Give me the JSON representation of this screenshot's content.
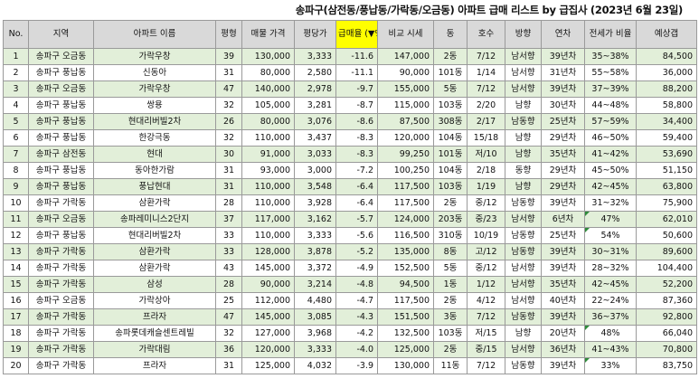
{
  "title": "송파구(삼전동/풍납동/가락동/오금동) 아파트 급매 리스트 by 급집사 (2023년 6월 23일)",
  "headers": [
    "No.",
    "지역",
    "아파트 이름",
    "평형",
    "매물 가격",
    "평당가",
    "급매율 (▼%)",
    "비교 시세",
    "동",
    "호수",
    "방향",
    "연차",
    "전세가 비율",
    "예상갭"
  ],
  "rows": [
    [
      "1",
      "송파구 오금동",
      "가락우창",
      "39",
      "130,000",
      "3,333",
      "-11.6",
      "147,000",
      "2동",
      "7/12",
      "남서향",
      "39년차",
      "35~38%",
      "84,500"
    ],
    [
      "2",
      "송파구 풍납동",
      "신동아",
      "31",
      "80,000",
      "2,580",
      "-11.1",
      "90,000",
      "101동",
      "1/14",
      "남서향",
      "31년차",
      "55~58%",
      "36,000"
    ],
    [
      "3",
      "송파구 오금동",
      "가락우창",
      "47",
      "140,000",
      "2,978",
      "-9.7",
      "155,000",
      "5동",
      "7/12",
      "남서향",
      "39년차",
      "37~39%",
      "88,200"
    ],
    [
      "4",
      "송파구 풍납동",
      "쌍용",
      "32",
      "105,000",
      "3,281",
      "-8.7",
      "115,000",
      "103동",
      "2/20",
      "남향",
      "30년차",
      "44~48%",
      "58,800"
    ],
    [
      "5",
      "송파구 풍납동",
      "현대리버빌2차",
      "26",
      "80,000",
      "3,076",
      "-8.6",
      "87,500",
      "308동",
      "2/17",
      "남동향",
      "25년차",
      "57~59%",
      "34,400"
    ],
    [
      "6",
      "송파구 풍납동",
      "한강극동",
      "32",
      "110,000",
      "3,437",
      "-8.3",
      "120,000",
      "104동",
      "15/18",
      "남향",
      "29년차",
      "46~50%",
      "59,400"
    ],
    [
      "7",
      "송파구 삼전동",
      "현대",
      "30",
      "91,000",
      "3,033",
      "-8.3",
      "99,250",
      "101동",
      "저/10",
      "남향",
      "35년차",
      "41~42%",
      "53,690"
    ],
    [
      "8",
      "송파구 풍납동",
      "동아한가람",
      "31",
      "93,000",
      "3,000",
      "-7.2",
      "100,250",
      "104동",
      "2/18",
      "동향",
      "29년차",
      "45~50%",
      "51,150"
    ],
    [
      "9",
      "송파구 풍납동",
      "풍납현대",
      "31",
      "110,000",
      "3,548",
      "-6.4",
      "117,500",
      "103동",
      "1/19",
      "남향",
      "29년차",
      "42~45%",
      "63,800"
    ],
    [
      "10",
      "송파구 가락동",
      "삼환가락",
      "28",
      "110,000",
      "3,928",
      "-6.4",
      "117,500",
      "2동",
      "중/12",
      "남동향",
      "39년차",
      "31~32%",
      "75,900"
    ],
    [
      "11",
      "송파구 오금동",
      "송파레미니스2단지",
      "37",
      "117,000",
      "3,162",
      "-5.7",
      "124,000",
      "203동",
      "중/23",
      "남서향",
      "6년차",
      "47%",
      "62,010"
    ],
    [
      "12",
      "송파구 풍납동",
      "현대리버빌2차",
      "33",
      "110,000",
      "3,333",
      "-5.6",
      "116,500",
      "310동",
      "10/19",
      "남동향",
      "25년차",
      "54%",
      "50,600"
    ],
    [
      "13",
      "송파구 가락동",
      "삼환가락",
      "33",
      "128,000",
      "3,878",
      "-5.2",
      "135,000",
      "8동",
      "고/12",
      "남동향",
      "39년차",
      "30~31%",
      "89,600"
    ],
    [
      "14",
      "송파구 가락동",
      "삼환가락",
      "43",
      "145,000",
      "3,372",
      "-4.9",
      "152,500",
      "5동",
      "중/12",
      "남서향",
      "39년차",
      "28~32%",
      "104,400"
    ],
    [
      "15",
      "송파구 가락동",
      "삼성",
      "28",
      "90,000",
      "3,214",
      "-4.8",
      "94,500",
      "1동",
      "1/12",
      "남서향",
      "35년차",
      "42~45%",
      "52,200"
    ],
    [
      "16",
      "송파구 오금동",
      "가락상아",
      "25",
      "112,000",
      "4,480",
      "-4.7",
      "117,500",
      "2동",
      "4/12",
      "남서향",
      "40년차",
      "22~24%",
      "87,360"
    ],
    [
      "17",
      "송파구 가락동",
      "프라자",
      "47",
      "145,000",
      "3,085",
      "-4.3",
      "151,500",
      "3동",
      "7/12",
      "남동향",
      "39년차",
      "36~37%",
      "92,800"
    ],
    [
      "18",
      "송파구 가락동",
      "송파롯데캐슬센트레빌",
      "32",
      "127,000",
      "3,968",
      "-4.2",
      "132,500",
      "103동",
      "저/15",
      "남향",
      "20년차",
      "48%",
      "66,040"
    ],
    [
      "19",
      "송파구 가락동",
      "가락대림",
      "36",
      "120,000",
      "3,333",
      "-4.0",
      "125,000",
      "2동",
      "중/15",
      "남서향",
      "36년차",
      "41~43%",
      "70,800"
    ],
    [
      "20",
      "송파구 가락동",
      "프라자",
      "31",
      "125,000",
      "4,032",
      "-3.9",
      "130,000",
      "11동",
      "7/12",
      "남동향",
      "39년차",
      "33%",
      "83,750"
    ]
  ],
  "colors": {
    "header_bg": "#d9d9d9",
    "highlight": "#ffff00",
    "stripe": "#e2efd9",
    "border": "#9a9a9a"
  }
}
